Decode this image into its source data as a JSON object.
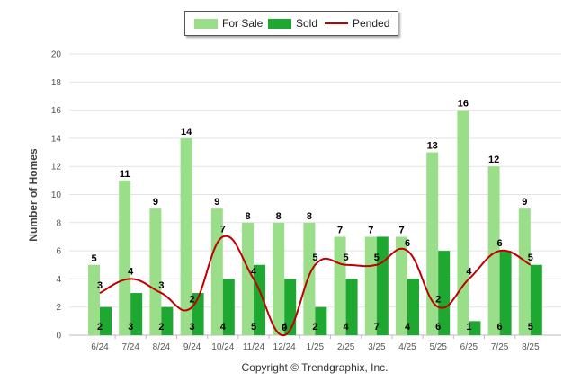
{
  "chart_data": {
    "type": "bar",
    "ylabel": "Number of Homes",
    "ylim": [
      0,
      20
    ],
    "yticks": [
      0,
      2,
      4,
      6,
      8,
      10,
      12,
      14,
      16,
      18,
      20
    ],
    "grid": true,
    "legend_position": "top-center",
    "categories": [
      "6/24",
      "7/24",
      "8/24",
      "9/24",
      "10/24",
      "11/24",
      "12/24",
      "1/25",
      "2/25",
      "3/25",
      "4/25",
      "5/25",
      "6/25",
      "7/25",
      "8/25"
    ],
    "series": [
      {
        "name": "For Sale",
        "kind": "bar",
        "color": "#9bde8a",
        "values": [
          5,
          11,
          9,
          14,
          9,
          8,
          8,
          8,
          7,
          7,
          7,
          13,
          16,
          12,
          9
        ]
      },
      {
        "name": "Sold",
        "kind": "bar",
        "color": "#1ea832",
        "values": [
          2,
          3,
          2,
          3,
          4,
          5,
          4,
          2,
          4,
          7,
          4,
          6,
          1,
          6,
          5
        ]
      },
      {
        "name": "Pended",
        "kind": "line",
        "color": "#c00000",
        "values": [
          3,
          4,
          3,
          2,
          7,
          4,
          0,
          5,
          5,
          5,
          6,
          2,
          4,
          6,
          5
        ]
      }
    ]
  },
  "footer": "Copyright © Trendgraphix, Inc."
}
